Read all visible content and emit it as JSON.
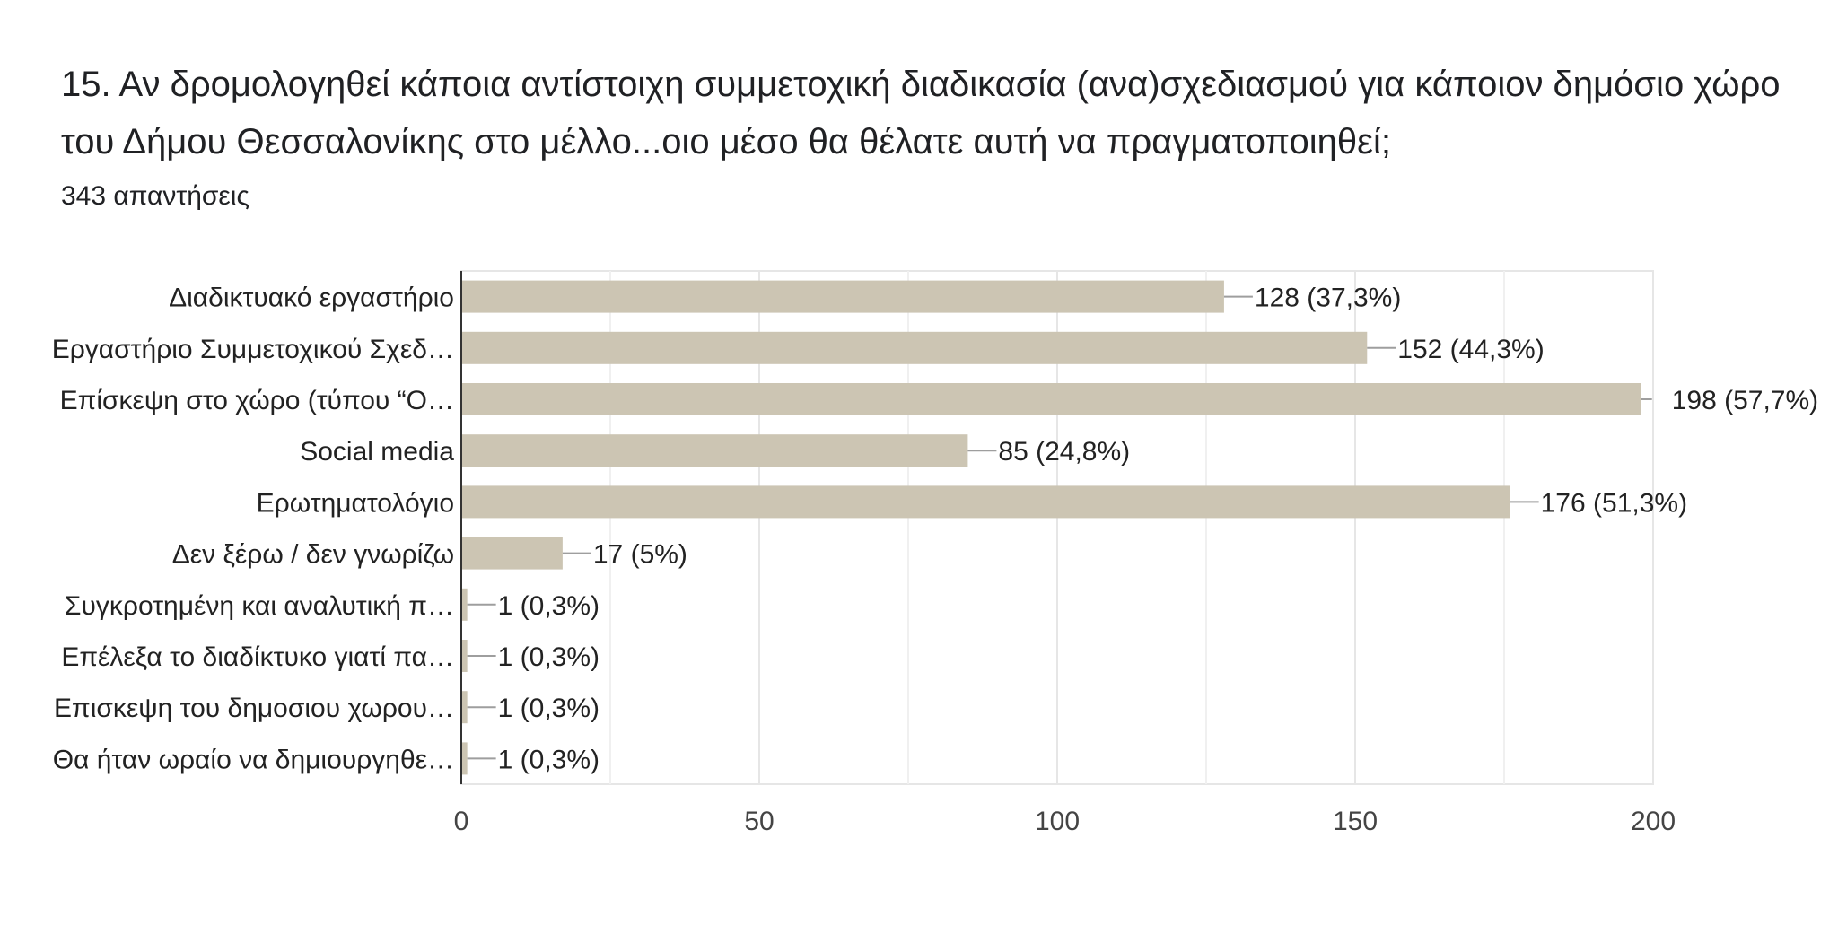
{
  "question": {
    "title": "15. Αν δρομολογηθεί κάποια αντίστοιχη συμμετοχική διαδικασία (ανα)σχεδιασμού για κάποιον δημόσιο χώρο του Δήμου Θεσσαλονίκης στο μέλλο...οιο μέσο θα θέλατε αυτή να πραγματοποιηθεί;",
    "response_count": "343 απαντήσεις"
  },
  "colors": {
    "bar": "#ccc5b3",
    "grid": "#e6e6e6",
    "axis": "#333333",
    "text": "#222222"
  },
  "chart_data": {
    "type": "bar",
    "orientation": "horizontal",
    "categories": [
      "Διαδικτυακό εργαστήριο",
      "Εργαστήριο Συμμετοχικού Σχεδ…",
      "Επίσκεψη στο χώρο (τύπου “Ο…",
      "Social media",
      "Ερωτηματολόγιο",
      "Δεν ξέρω / δεν γνωρίζω",
      "Συγκροτημένη και αναλυτική π…",
      "Επέλεξα το διαδίκτυκο γιατί πα…",
      "Επισκεψη του δημοσιου χωρου…",
      "Θα ήταν ωραίο να δημιουργηθε…"
    ],
    "values": [
      128,
      152,
      198,
      85,
      176,
      17,
      1,
      1,
      1,
      1
    ],
    "data_labels": [
      "128 (37,3%)",
      "152 (44,3%)",
      "198 (57,7%)",
      "85 (24,8%)",
      "176 (51,3%)",
      "17 (5%)",
      "1 (0,3%)",
      "1 (0,3%)",
      "1 (0,3%)",
      "1 (0,3%)"
    ],
    "xlim": [
      0,
      200
    ],
    "x_ticks": [
      "0",
      "50",
      "100",
      "150",
      "200"
    ],
    "x_tick_values": [
      0,
      50,
      100,
      150,
      200
    ],
    "minor_gridlines": [
      25,
      75,
      125,
      175
    ],
    "grid": true,
    "legend": "none"
  }
}
